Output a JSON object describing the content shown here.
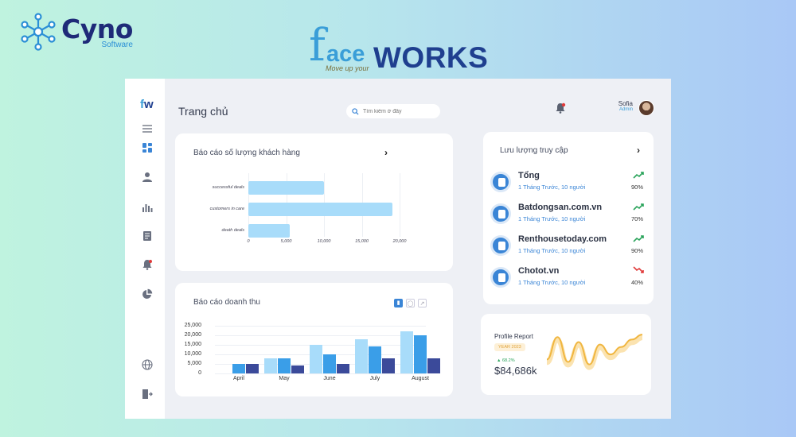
{
  "brand": {
    "cyno_name": "Cyno",
    "cyno_sub": "Software",
    "face_f": "f",
    "face_ace": "ace",
    "face_works": "WORKS",
    "face_tagline": "Move up your"
  },
  "app": {
    "logo_f": "f",
    "logo_w": "w",
    "page_title": "Trang chủ",
    "search_placeholder": "Tìm kiếm ở đây",
    "user": {
      "name": "Sofia",
      "role": "Admin"
    },
    "sidebar_icons": [
      "menu-icon",
      "dashboard-icon",
      "user-icon",
      "bar-chart-icon",
      "document-icon",
      "notification-icon",
      "pie-chart-icon",
      "globe-icon",
      "logout-icon"
    ]
  },
  "customers_card": {
    "title": "Báo cáo số lượng khách hàng"
  },
  "traffic_card": {
    "title": "Lưu lượng truy cập",
    "items": [
      {
        "name": "Tổng",
        "sub": "1 Tháng Trước, 10 người",
        "pct": "90%",
        "trend": "up"
      },
      {
        "name": "Batdongsan.com.vn",
        "sub": "1 Tháng Trước, 10 người",
        "pct": "70%",
        "trend": "up"
      },
      {
        "name": "Renthousetoday.com",
        "sub": "1 Tháng Trước, 10 người",
        "pct": "90%",
        "trend": "up"
      },
      {
        "name": "Chotot.vn",
        "sub": "1 Tháng Trước, 10 người",
        "pct": "40%",
        "trend": "down"
      }
    ]
  },
  "revenue_card": {
    "title": "Báo cáo doanh thu"
  },
  "profile_card": {
    "title": "Profile Report",
    "year": "YEAR 2023",
    "growth": "68.2%",
    "value": "$84,686k"
  },
  "colors": {
    "light_blue": "#a8dcfa",
    "mid_blue": "#3a9ee8",
    "navy": "#3b4a9a",
    "up": "#29a35a",
    "down": "#e03a3a",
    "wave": "#f0b640"
  },
  "chart_data": [
    {
      "type": "bar",
      "orientation": "horizontal",
      "categories": [
        "successful deals",
        "customers in care",
        "death deals"
      ],
      "values": [
        10000,
        19000,
        5500
      ],
      "xlim": [
        0,
        20000
      ],
      "xticks": [
        "0",
        "5,000",
        "10,000",
        "15,000",
        "20,000"
      ]
    },
    {
      "type": "bar",
      "categories": [
        "April",
        "May",
        "June",
        "July",
        "August"
      ],
      "yticks": [
        "25,000",
        "20,000",
        "15,000",
        "10,000",
        "5,000",
        "0"
      ],
      "ylim": [
        0,
        25000
      ],
      "series": [
        {
          "values": [
            0,
            8000,
            15000,
            18000,
            22000
          ]
        },
        {
          "values": [
            5000,
            8000,
            10000,
            14000,
            20000
          ]
        },
        {
          "values": [
            5000,
            4000,
            5000,
            8000,
            8000
          ]
        }
      ]
    },
    {
      "type": "line",
      "y": [
        5,
        14,
        4,
        12,
        3,
        11,
        7,
        10,
        13,
        15
      ]
    }
  ]
}
